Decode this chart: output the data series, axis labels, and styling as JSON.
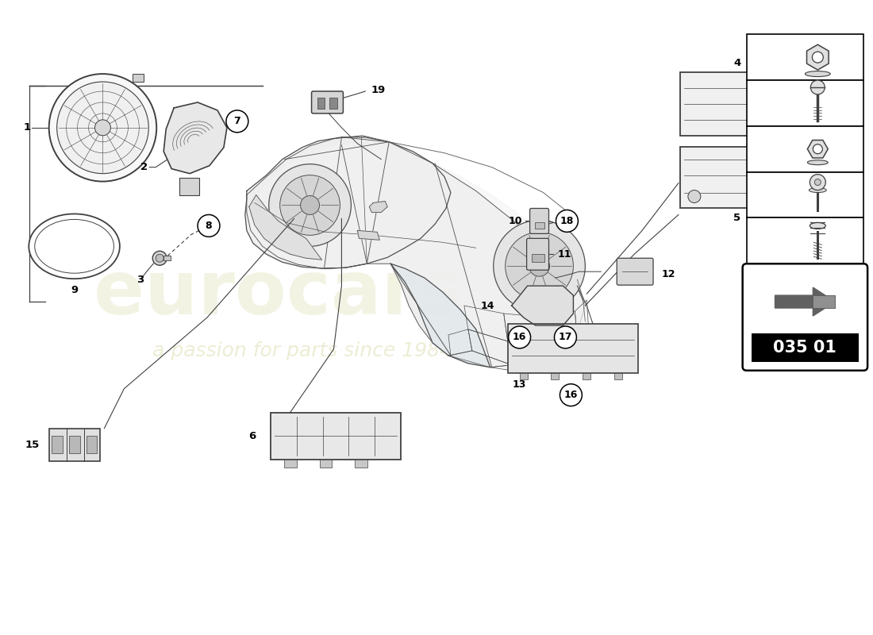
{
  "background_color": "#ffffff",
  "page_code": "035 01",
  "watermark_line1": "eurocars",
  "watermark_line2": "a passion for parts since 1984",
  "diagram_color": "#404040",
  "light_gray": "#d8d8d8",
  "mid_gray": "#b0b0b0",
  "right_panel_items": [
    {
      "num": 18
    },
    {
      "num": 17
    },
    {
      "num": 16
    },
    {
      "num": 8
    },
    {
      "num": 7
    }
  ],
  "car_color": "#e8e8e8",
  "car_line_color": "#505050"
}
